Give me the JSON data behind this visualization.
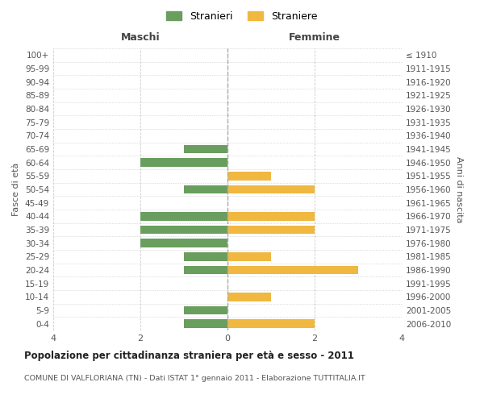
{
  "age_groups": [
    "100+",
    "95-99",
    "90-94",
    "85-89",
    "80-84",
    "75-79",
    "70-74",
    "65-69",
    "60-64",
    "55-59",
    "50-54",
    "45-49",
    "40-44",
    "35-39",
    "30-34",
    "25-29",
    "20-24",
    "15-19",
    "10-14",
    "5-9",
    "0-4"
  ],
  "birth_years": [
    "≤ 1910",
    "1911-1915",
    "1916-1920",
    "1921-1925",
    "1926-1930",
    "1931-1935",
    "1936-1940",
    "1941-1945",
    "1946-1950",
    "1951-1955",
    "1956-1960",
    "1961-1965",
    "1966-1970",
    "1971-1975",
    "1976-1980",
    "1981-1985",
    "1986-1990",
    "1991-1995",
    "1996-2000",
    "2001-2005",
    "2006-2010"
  ],
  "maschi": [
    0,
    0,
    0,
    0,
    0,
    0,
    0,
    1,
    2,
    0,
    1,
    0,
    2,
    2,
    2,
    1,
    1,
    0,
    0,
    1,
    1
  ],
  "femmine": [
    0,
    0,
    0,
    0,
    0,
    0,
    0,
    0,
    0,
    1,
    2,
    0,
    2,
    2,
    0,
    1,
    3,
    0,
    1,
    0,
    2
  ],
  "color_maschi": "#6a9e5e",
  "color_femmine": "#f0b840",
  "title": "Popolazione per cittadinanza straniera per età e sesso - 2011",
  "subtitle": "COMUNE DI VALFLORIANA (TN) - Dati ISTAT 1° gennaio 2011 - Elaborazione TUTTITALIA.IT",
  "xlabel_left": "Maschi",
  "xlabel_right": "Femmine",
  "ylabel_left": "Fasce di età",
  "ylabel_right": "Anni di nascita",
  "legend_stranieri": "Stranieri",
  "legend_straniere": "Straniere",
  "xlim": 4,
  "background_color": "#ffffff",
  "grid_color": "#cccccc",
  "bar_height": 0.65
}
